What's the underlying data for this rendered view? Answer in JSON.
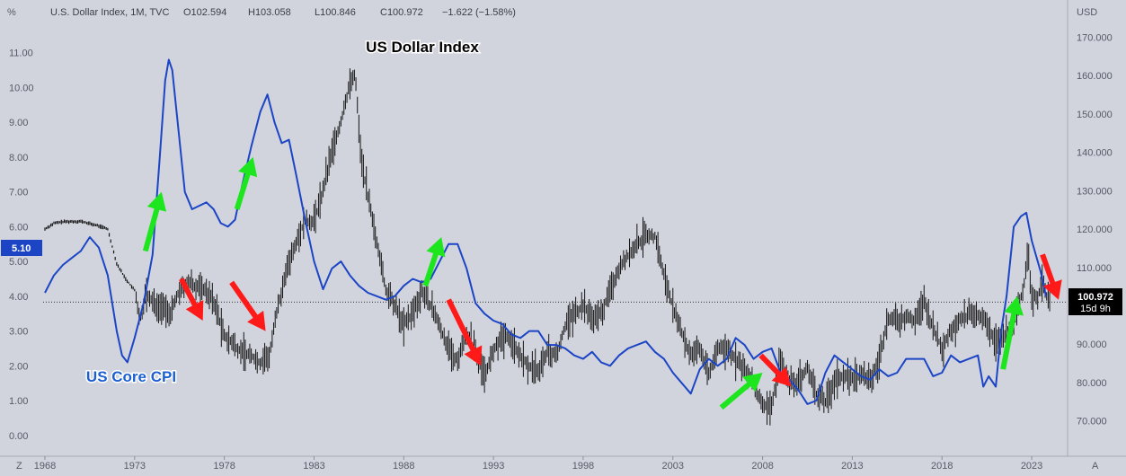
{
  "header": {
    "symbol_line": "U.S. Dollar Index, 1M, TVC",
    "open": "O102.594",
    "high": "H103.058",
    "low": "L100.846",
    "close": "C100.972",
    "change": "−1.622 (−1.58%)"
  },
  "left_axis_unit": "%",
  "right_axis_unit": "USD",
  "left_badge": "5.10",
  "price_badge": {
    "value": "100.972",
    "countdown": "15d 9h"
  },
  "corner_left": "Z",
  "corner_right": "A",
  "colors": {
    "background": "#d1d4dc",
    "cpi_line": "#1c45c6",
    "dxy_bars": "#141414",
    "up_arrow": "#1ee61e",
    "down_arrow": "#ff1a1a",
    "cpi_label": "#1c5fd0"
  },
  "annotations": {
    "dxy_label": "US Dollar Index",
    "cpi_label": "US Core CPI"
  },
  "chart_data": {
    "type": "line",
    "x_ticks": [
      "1968",
      "1973",
      "1978",
      "1983",
      "1988",
      "1993",
      "1998",
      "2003",
      "2008",
      "2013",
      "2018",
      "2023"
    ],
    "x_range": [
      1967.9,
      2025.0
    ],
    "left_axis": {
      "ticks": [
        "0.00",
        "1.00",
        "2.00",
        "3.00",
        "4.00",
        "5.00",
        "6.00",
        "7.00",
        "8.00",
        "9.00",
        "10.00",
        "11.00"
      ],
      "range": [
        -0.6,
        12.0
      ]
    },
    "right_axis": {
      "ticks": [
        "70.000",
        "80.000",
        "90.000",
        "100.000",
        "110.000",
        "120.000",
        "130.000",
        "140.000",
        "150.000",
        "160.000",
        "170.000"
      ],
      "range": [
        60.8,
        175.0
      ]
    },
    "last_price_line": 100.972,
    "series": [
      {
        "name": "US Core CPI",
        "axis": "left",
        "points": [
          [
            1968.0,
            4.1
          ],
          [
            1968.5,
            4.6
          ],
          [
            1969.0,
            4.9
          ],
          [
            1969.5,
            5.1
          ],
          [
            1970.0,
            5.3
          ],
          [
            1970.5,
            5.7
          ],
          [
            1971.0,
            5.4
          ],
          [
            1971.5,
            4.6
          ],
          [
            1972.0,
            3.0
          ],
          [
            1972.3,
            2.3
          ],
          [
            1972.6,
            2.1
          ],
          [
            1973.0,
            2.8
          ],
          [
            1973.5,
            3.8
          ],
          [
            1974.0,
            5.2
          ],
          [
            1974.4,
            8.0
          ],
          [
            1974.7,
            10.2
          ],
          [
            1974.9,
            10.8
          ],
          [
            1975.1,
            10.5
          ],
          [
            1975.4,
            9.0
          ],
          [
            1975.8,
            7.0
          ],
          [
            1976.2,
            6.5
          ],
          [
            1976.6,
            6.6
          ],
          [
            1977.0,
            6.7
          ],
          [
            1977.4,
            6.5
          ],
          [
            1977.8,
            6.1
          ],
          [
            1978.2,
            6.0
          ],
          [
            1978.6,
            6.2
          ],
          [
            1979.0,
            7.2
          ],
          [
            1979.5,
            8.3
          ],
          [
            1980.0,
            9.3
          ],
          [
            1980.4,
            9.8
          ],
          [
            1980.8,
            9.0
          ],
          [
            1981.2,
            8.4
          ],
          [
            1981.6,
            8.5
          ],
          [
            1982.0,
            7.5
          ],
          [
            1982.5,
            6.2
          ],
          [
            1983.0,
            5.0
          ],
          [
            1983.5,
            4.2
          ],
          [
            1984.0,
            4.8
          ],
          [
            1984.5,
            5.0
          ],
          [
            1985.0,
            4.6
          ],
          [
            1985.5,
            4.3
          ],
          [
            1986.0,
            4.1
          ],
          [
            1986.5,
            4.0
          ],
          [
            1987.0,
            3.9
          ],
          [
            1987.5,
            4.0
          ],
          [
            1988.0,
            4.3
          ],
          [
            1988.5,
            4.5
          ],
          [
            1989.0,
            4.4
          ],
          [
            1989.5,
            4.5
          ],
          [
            1990.0,
            5.0
          ],
          [
            1990.5,
            5.5
          ],
          [
            1991.0,
            5.5
          ],
          [
            1991.5,
            4.8
          ],
          [
            1992.0,
            3.8
          ],
          [
            1992.5,
            3.5
          ],
          [
            1993.0,
            3.3
          ],
          [
            1993.5,
            3.2
          ],
          [
            1994.0,
            2.9
          ],
          [
            1994.5,
            2.8
          ],
          [
            1995.0,
            3.0
          ],
          [
            1995.5,
            3.0
          ],
          [
            1996.0,
            2.6
          ],
          [
            1996.5,
            2.6
          ],
          [
            1997.0,
            2.5
          ],
          [
            1997.5,
            2.3
          ],
          [
            1998.0,
            2.2
          ],
          [
            1998.5,
            2.4
          ],
          [
            1999.0,
            2.1
          ],
          [
            1999.5,
            2.0
          ],
          [
            2000.0,
            2.3
          ],
          [
            2000.5,
            2.5
          ],
          [
            2001.0,
            2.6
          ],
          [
            2001.5,
            2.7
          ],
          [
            2002.0,
            2.4
          ],
          [
            2002.5,
            2.2
          ],
          [
            2003.0,
            1.8
          ],
          [
            2003.5,
            1.5
          ],
          [
            2004.0,
            1.2
          ],
          [
            2004.5,
            1.9
          ],
          [
            2005.0,
            2.2
          ],
          [
            2005.5,
            2.0
          ],
          [
            2006.0,
            2.2
          ],
          [
            2006.5,
            2.8
          ],
          [
            2007.0,
            2.6
          ],
          [
            2007.5,
            2.2
          ],
          [
            2008.0,
            2.4
          ],
          [
            2008.5,
            2.5
          ],
          [
            2009.0,
            1.8
          ],
          [
            2009.5,
            1.6
          ],
          [
            2010.0,
            1.3
          ],
          [
            2010.5,
            0.9
          ],
          [
            2011.0,
            1.0
          ],
          [
            2011.5,
            1.8
          ],
          [
            2012.0,
            2.3
          ],
          [
            2012.5,
            2.1
          ],
          [
            2013.0,
            1.9
          ],
          [
            2013.5,
            1.7
          ],
          [
            2014.0,
            1.6
          ],
          [
            2014.5,
            1.9
          ],
          [
            2015.0,
            1.7
          ],
          [
            2015.5,
            1.8
          ],
          [
            2016.0,
            2.2
          ],
          [
            2016.5,
            2.2
          ],
          [
            2017.0,
            2.2
          ],
          [
            2017.5,
            1.7
          ],
          [
            2018.0,
            1.8
          ],
          [
            2018.5,
            2.3
          ],
          [
            2019.0,
            2.1
          ],
          [
            2019.5,
            2.2
          ],
          [
            2020.0,
            2.3
          ],
          [
            2020.3,
            1.4
          ],
          [
            2020.6,
            1.7
          ],
          [
            2021.0,
            1.4
          ],
          [
            2021.3,
            3.0
          ],
          [
            2021.6,
            4.0
          ],
          [
            2022.0,
            6.0
          ],
          [
            2022.4,
            6.3
          ],
          [
            2022.7,
            6.4
          ],
          [
            2023.0,
            5.6
          ],
          [
            2023.5,
            4.7
          ],
          [
            2023.8,
            4.0
          ]
        ]
      },
      {
        "name": "U.S. Dollar Index",
        "axis": "right",
        "points": [
          [
            1968.0,
            120.0
          ],
          [
            1968.5,
            121.5
          ],
          [
            1969.0,
            121.9
          ],
          [
            1970.0,
            122.0
          ],
          [
            1971.0,
            120.8
          ],
          [
            1971.5,
            120.0
          ],
          [
            1972.0,
            111.0
          ],
          [
            1972.5,
            107.0
          ],
          [
            1973.0,
            104.0
          ],
          [
            1973.3,
            96.0
          ],
          [
            1973.6,
            103.0
          ],
          [
            1974.0,
            101.0
          ],
          [
            1974.5,
            99.5
          ],
          [
            1975.0,
            98.0
          ],
          [
            1975.5,
            104.0
          ],
          [
            1976.0,
            106.0
          ],
          [
            1977.0,
            104.0
          ],
          [
            1977.5,
            100.0
          ],
          [
            1978.0,
            92.0
          ],
          [
            1978.5,
            90.0
          ],
          [
            1979.0,
            88.0
          ],
          [
            1979.5,
            87.0
          ],
          [
            1980.0,
            85.0
          ],
          [
            1980.5,
            87.0
          ],
          [
            1981.0,
            100.0
          ],
          [
            1981.5,
            110.0
          ],
          [
            1982.0,
            117.0
          ],
          [
            1982.5,
            122.0
          ],
          [
            1983.0,
            122.0
          ],
          [
            1983.5,
            130.0
          ],
          [
            1984.0,
            140.0
          ],
          [
            1984.5,
            148.0
          ],
          [
            1985.0,
            158.0
          ],
          [
            1985.3,
            160.0
          ],
          [
            1985.6,
            140.0
          ],
          [
            1986.0,
            128.0
          ],
          [
            1986.5,
            117.0
          ],
          [
            1987.0,
            104.0
          ],
          [
            1987.5,
            100.0
          ],
          [
            1988.0,
            95.0
          ],
          [
            1988.5,
            98.0
          ],
          [
            1989.0,
            104.0
          ],
          [
            1989.5,
            100.0
          ],
          [
            1990.0,
            95.0
          ],
          [
            1990.5,
            88.0
          ],
          [
            1991.0,
            86.0
          ],
          [
            1991.5,
            93.0
          ],
          [
            1992.0,
            88.0
          ],
          [
            1992.5,
            82.0
          ],
          [
            1993.0,
            88.0
          ],
          [
            1993.5,
            92.0
          ],
          [
            1994.0,
            91.0
          ],
          [
            1994.5,
            87.0
          ],
          [
            1995.0,
            84.0
          ],
          [
            1995.5,
            83.0
          ],
          [
            1996.0,
            88.0
          ],
          [
            1996.5,
            87.0
          ],
          [
            1997.0,
            95.0
          ],
          [
            1997.5,
            98.0
          ],
          [
            1998.0,
            100.0
          ],
          [
            1998.5,
            97.0
          ],
          [
            1999.0,
            98.0
          ],
          [
            1999.5,
            104.0
          ],
          [
            2000.0,
            110.0
          ],
          [
            2000.5,
            113.0
          ],
          [
            2001.0,
            116.0
          ],
          [
            2001.5,
            118.0
          ],
          [
            2002.0,
            118.0
          ],
          [
            2002.5,
            108.0
          ],
          [
            2003.0,
            100.0
          ],
          [
            2003.5,
            93.0
          ],
          [
            2004.0,
            87.0
          ],
          [
            2004.5,
            89.0
          ],
          [
            2005.0,
            82.0
          ],
          [
            2005.5,
            89.0
          ],
          [
            2006.0,
            89.0
          ],
          [
            2006.5,
            86.0
          ],
          [
            2007.0,
            83.0
          ],
          [
            2007.5,
            80.0
          ],
          [
            2008.0,
            74.0
          ],
          [
            2008.5,
            74.0
          ],
          [
            2009.0,
            86.0
          ],
          [
            2009.5,
            80.0
          ],
          [
            2010.0,
            80.0
          ],
          [
            2010.5,
            84.0
          ],
          [
            2011.0,
            77.0
          ],
          [
            2011.5,
            75.0
          ],
          [
            2012.0,
            80.0
          ],
          [
            2012.5,
            82.0
          ],
          [
            2013.0,
            81.0
          ],
          [
            2013.5,
            82.0
          ],
          [
            2014.0,
            80.0
          ],
          [
            2014.5,
            86.0
          ],
          [
            2015.0,
            97.0
          ],
          [
            2015.5,
            96.0
          ],
          [
            2016.0,
            97.0
          ],
          [
            2016.5,
            96.0
          ],
          [
            2017.0,
            101.0
          ],
          [
            2017.5,
            94.0
          ],
          [
            2018.0,
            89.0
          ],
          [
            2018.5,
            94.0
          ],
          [
            2019.0,
            96.0
          ],
          [
            2019.5,
            98.0
          ],
          [
            2020.0,
            97.0
          ],
          [
            2020.5,
            96.0
          ],
          [
            2021.0,
            90.0
          ],
          [
            2021.5,
            92.0
          ],
          [
            2022.0,
            96.0
          ],
          [
            2022.5,
            104.0
          ],
          [
            2022.8,
            113.0
          ],
          [
            2023.0,
            103.0
          ],
          [
            2023.3,
            102.0
          ],
          [
            2023.6,
            106.0
          ],
          [
            2023.8,
            103.0
          ],
          [
            2024.0,
            101.0
          ]
        ]
      }
    ],
    "arrows": {
      "up": [
        [
          1973.6,
          5.3,
          1974.5,
          7.0
        ],
        [
          1978.7,
          6.5,
          1979.6,
          8.0
        ],
        [
          1989.2,
          4.3,
          1990.1,
          5.7
        ],
        [
          2005.7,
          0.8,
          2008.0,
          1.8
        ],
        [
          2021.4,
          1.9,
          2022.2,
          4.0
        ]
      ],
      "down": [
        [
          1975.6,
          4.5,
          1976.8,
          3.3
        ],
        [
          1978.4,
          4.4,
          1980.3,
          3.0
        ],
        [
          1990.5,
          3.9,
          1992.3,
          2.0
        ],
        [
          2007.9,
          2.3,
          2009.6,
          1.4
        ],
        [
          2023.6,
          5.2,
          2024.5,
          3.9
        ]
      ]
    }
  }
}
